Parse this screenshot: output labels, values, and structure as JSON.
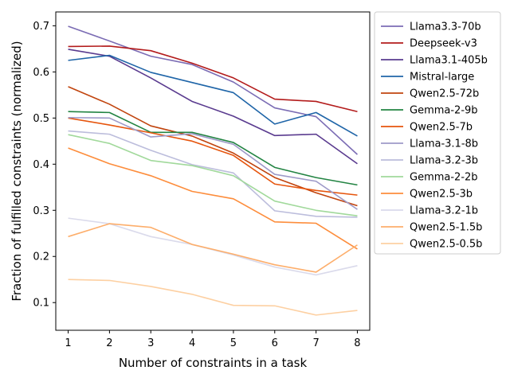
{
  "chart_data": {
    "type": "line",
    "xlabel": "Number of constraints in a task",
    "ylabel": "Fraction of fulfilled constraints (normalized)",
    "x": [
      1,
      2,
      3,
      4,
      5,
      6,
      7,
      8
    ],
    "xlim": [
      0.7,
      8.3
    ],
    "ylim": [
      0.04,
      0.73
    ],
    "yticks": [
      0.1,
      0.2,
      0.3,
      0.4,
      0.5,
      0.6,
      0.7
    ],
    "ytick_labels": [
      "0.1",
      "0.2",
      "0.3",
      "0.4",
      "0.5",
      "0.6",
      "0.7"
    ],
    "xtick_labels": [
      "1",
      "2",
      "3",
      "4",
      "5",
      "6",
      "7",
      "8"
    ],
    "grid": false,
    "legend_position": "outside-right",
    "series": [
      {
        "name": "Llama3.3-70b",
        "color": "#7b6cb4",
        "values": [
          0.699,
          0.667,
          0.634,
          0.616,
          0.578,
          0.522,
          0.503,
          0.421
        ]
      },
      {
        "name": "Deepseek-v3",
        "color": "#b31b1b",
        "values": [
          0.655,
          0.656,
          0.646,
          0.619,
          0.587,
          0.541,
          0.536,
          0.514
        ]
      },
      {
        "name": "Llama3.1-405b",
        "color": "#5a3b8f",
        "values": [
          0.649,
          0.634,
          0.587,
          0.536,
          0.504,
          0.462,
          0.465,
          0.401
        ]
      },
      {
        "name": "Mistral-large",
        "color": "#1f65a8",
        "values": [
          0.625,
          0.636,
          0.599,
          0.577,
          0.555,
          0.487,
          0.512,
          0.461
        ]
      },
      {
        "name": "Qwen2.5-72b",
        "color": "#c1440e",
        "values": [
          0.568,
          0.53,
          0.483,
          0.461,
          0.424,
          0.371,
          0.338,
          0.31
        ]
      },
      {
        "name": "Gemma-2-9b",
        "color": "#238443",
        "values": [
          0.514,
          0.512,
          0.469,
          0.469,
          0.447,
          0.393,
          0.371,
          0.355
        ]
      },
      {
        "name": "Qwen2.5-7b",
        "color": "#e6550d",
        "values": [
          0.5,
          0.485,
          0.468,
          0.45,
          0.419,
          0.357,
          0.343,
          0.333
        ]
      },
      {
        "name": "Llama-3.1-8b",
        "color": "#9e9ac8",
        "values": [
          0.501,
          0.5,
          0.459,
          0.466,
          0.443,
          0.378,
          0.363,
          0.302
        ]
      },
      {
        "name": "Llama-3.2-3b",
        "color": "#bcbddc",
        "values": [
          0.472,
          0.465,
          0.43,
          0.399,
          0.381,
          0.299,
          0.287,
          0.285
        ]
      },
      {
        "name": "Gemma-2-2b",
        "color": "#a1d99b",
        "values": [
          0.464,
          0.445,
          0.408,
          0.397,
          0.375,
          0.32,
          0.3,
          0.288
        ]
      },
      {
        "name": "Qwen2.5-3b",
        "color": "#fd8d3c",
        "values": [
          0.435,
          0.401,
          0.375,
          0.341,
          0.325,
          0.275,
          0.272,
          0.216
        ]
      },
      {
        "name": "Llama-3.2-1b",
        "color": "#dadaeb",
        "values": [
          0.283,
          0.271,
          0.243,
          0.226,
          0.203,
          0.177,
          0.16,
          0.18
        ]
      },
      {
        "name": "Qwen2.5-1.5b",
        "color": "#fdae6b",
        "values": [
          0.243,
          0.271,
          0.263,
          0.226,
          0.205,
          0.182,
          0.166,
          0.225
        ]
      },
      {
        "name": "Qwen2.5-0.5b",
        "color": "#fdd0a2",
        "values": [
          0.15,
          0.148,
          0.135,
          0.118,
          0.094,
          0.093,
          0.073,
          0.083
        ]
      }
    ]
  }
}
